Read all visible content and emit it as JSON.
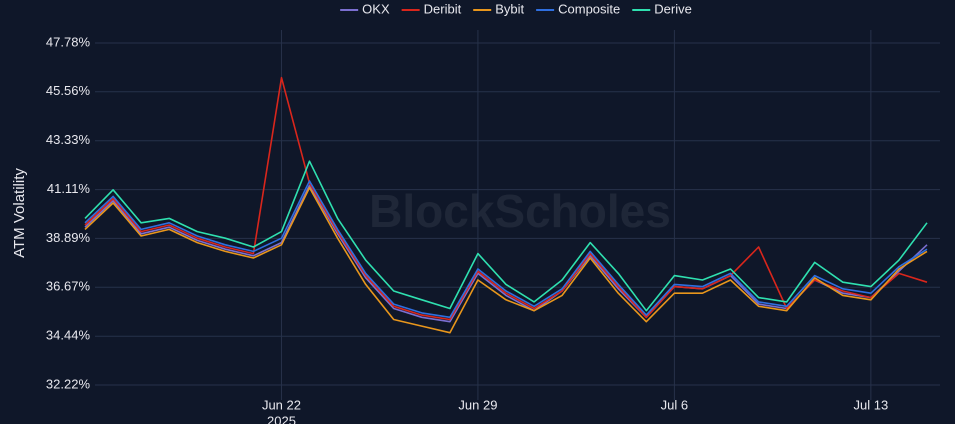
{
  "chart_data": {
    "type": "line",
    "watermark": "BlockScholes",
    "y_axis_label": "ATM Volatility",
    "x_axis_year": "2025",
    "x": [
      "2025-06-15",
      "2025-06-16",
      "2025-06-17",
      "2025-06-18",
      "2025-06-19",
      "2025-06-20",
      "2025-06-21",
      "2025-06-22",
      "2025-06-23",
      "2025-06-24",
      "2025-06-25",
      "2025-06-26",
      "2025-06-27",
      "2025-06-28",
      "2025-06-29",
      "2025-06-30",
      "2025-07-01",
      "2025-07-02",
      "2025-07-03",
      "2025-07-04",
      "2025-07-05",
      "2025-07-06",
      "2025-07-07",
      "2025-07-08",
      "2025-07-09",
      "2025-07-10",
      "2025-07-11",
      "2025-07-12",
      "2025-07-13",
      "2025-07-14",
      "2025-07-15"
    ],
    "series": [
      {
        "name": "OKX",
        "color": "#7b6fd0",
        "values": [
          39.4,
          40.6,
          39.1,
          39.4,
          38.8,
          38.4,
          38.1,
          38.7,
          41.3,
          39.1,
          37.1,
          35.7,
          35.3,
          35.1,
          37.3,
          36.3,
          35.6,
          36.5,
          38.1,
          36.6,
          35.3,
          36.7,
          36.6,
          37.2,
          35.9,
          35.7,
          37.0,
          36.4,
          36.2,
          37.4,
          38.6
        ]
      },
      {
        "name": "Deribit",
        "color": "#d9261c",
        "values": [
          39.5,
          40.7,
          39.2,
          39.5,
          38.9,
          38.5,
          38.2,
          46.2,
          41.4,
          39.2,
          37.2,
          35.8,
          35.4,
          35.2,
          37.4,
          36.4,
          35.7,
          36.5,
          38.2,
          36.7,
          35.3,
          36.7,
          36.6,
          37.2,
          38.5,
          35.7,
          37.0,
          36.5,
          36.2,
          37.3,
          36.9
        ]
      },
      {
        "name": "Bybit",
        "color": "#e8961c",
        "values": [
          39.3,
          40.5,
          39.0,
          39.3,
          38.7,
          38.3,
          38.0,
          38.6,
          41.2,
          38.9,
          36.8,
          35.2,
          34.9,
          34.6,
          37.0,
          36.1,
          35.6,
          36.3,
          38.0,
          36.4,
          35.1,
          36.4,
          36.4,
          37.0,
          35.8,
          35.6,
          37.1,
          36.3,
          36.1,
          37.5,
          38.3
        ]
      },
      {
        "name": "Composite",
        "color": "#2f6fdf",
        "values": [
          39.6,
          40.8,
          39.3,
          39.6,
          39.0,
          38.6,
          38.3,
          38.9,
          41.5,
          39.3,
          37.3,
          35.9,
          35.5,
          35.3,
          37.5,
          36.5,
          35.8,
          36.6,
          38.3,
          36.8,
          35.4,
          36.8,
          36.7,
          37.3,
          36.0,
          35.8,
          37.2,
          36.6,
          36.4,
          37.6,
          38.4
        ]
      },
      {
        "name": "Derive",
        "color": "#2fe0b0",
        "values": [
          39.8,
          41.1,
          39.6,
          39.8,
          39.2,
          38.9,
          38.5,
          39.2,
          42.4,
          39.8,
          37.9,
          36.5,
          36.1,
          35.7,
          38.2,
          36.8,
          36.0,
          37.0,
          38.7,
          37.3,
          35.6,
          37.2,
          37.0,
          37.5,
          36.2,
          36.0,
          37.8,
          36.9,
          36.7,
          37.9,
          39.6
        ]
      }
    ],
    "xlim": [
      "2025-06-15",
      "2025-07-15"
    ],
    "xticks": [
      {
        "value": "2025-06-22",
        "label": "Jun 22"
      },
      {
        "value": "2025-06-29",
        "label": "Jun 29"
      },
      {
        "value": "2025-07-06",
        "label": "Jul 6"
      },
      {
        "value": "2025-07-13",
        "label": "Jul 13"
      }
    ],
    "ylim": [
      31.54,
      48.37
    ],
    "yticks": [
      {
        "value": 32.22,
        "label": "32.22%"
      },
      {
        "value": 34.44,
        "label": "34.44%"
      },
      {
        "value": 36.67,
        "label": "36.67%"
      },
      {
        "value": 38.89,
        "label": "38.89%"
      },
      {
        "value": 41.11,
        "label": "41.11%"
      },
      {
        "value": 43.33,
        "label": "43.33%"
      },
      {
        "value": 45.56,
        "label": "45.56%"
      },
      {
        "value": 47.78,
        "label": "47.78%"
      }
    ],
    "grid": true
  }
}
